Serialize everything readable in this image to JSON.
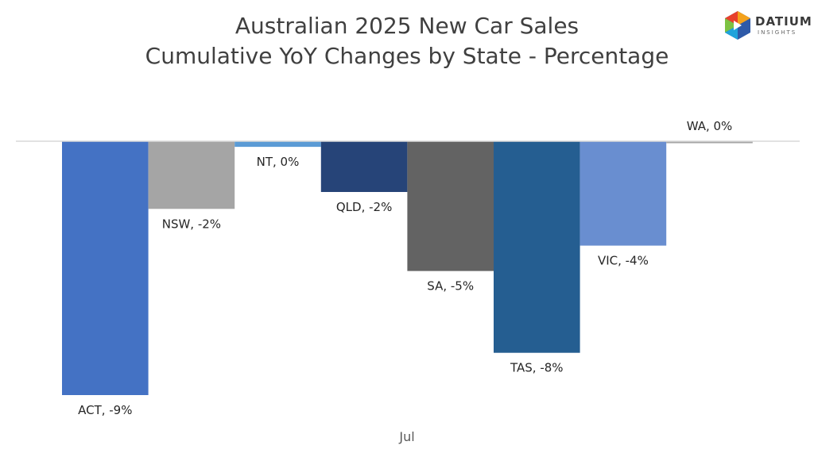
{
  "title": {
    "line1": "Australian 2025 New Car Sales",
    "line2": "Cumulative YoY Changes by State - Percentage"
  },
  "logo": {
    "name": "DATIUM",
    "sub": "INSIGHTS"
  },
  "chart_data": {
    "type": "bar",
    "x_category": "Jul",
    "categories": [
      "ACT",
      "NSW",
      "NT",
      "QLD",
      "SA",
      "TAS",
      "VIC",
      "WA"
    ],
    "values": [
      -9,
      -2.4,
      -0.2,
      -1.8,
      -4.6,
      -7.5,
      -3.7,
      -0.02
    ],
    "data_labels": [
      "ACT, -9%",
      "NSW, -2%",
      "NT, 0%",
      "QLD, -2%",
      "SA, -5%",
      "TAS, -8%",
      "VIC, -4%",
      "WA, 0%"
    ],
    "colors": [
      "#4472C4",
      "#A5A5A5",
      "#5B9BD5",
      "#264478",
      "#636363",
      "#255E91",
      "#698ED0",
      "#A5A5A5"
    ],
    "ylim": [
      -9,
      0
    ],
    "grid": false,
    "legend": "none"
  }
}
